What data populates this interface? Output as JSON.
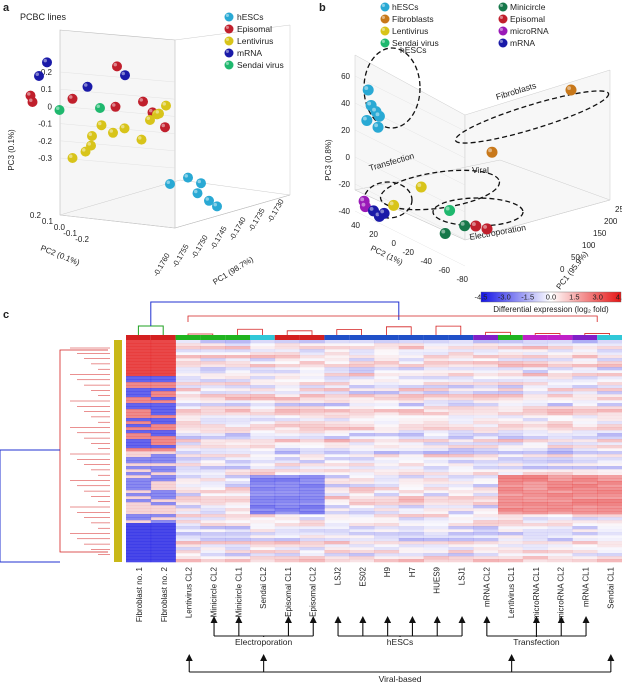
{
  "chart_data": [
    {
      "panel": "a",
      "type": "scatter",
      "title": "PCBC lines",
      "xlabel": "PC1 (98.7%)",
      "ylabel": "PC2 (0.1%)",
      "zlabel": "PC3 (0.1%)",
      "z_ticks": [
        "0.2",
        "0.1",
        "0",
        "-0.1",
        "-0.2",
        "-0.3"
      ],
      "y_ticks": [
        "0.2",
        "0.1",
        "0.0",
        "-0.1",
        "-0.2"
      ],
      "x_ticks": [
        "-0.1760",
        "-0.1755",
        "-0.1750",
        "-0.1745",
        "-0.1740",
        "-0.1735",
        "-0.1730"
      ],
      "legend": [
        {
          "label": "hESCs",
          "color": "#29a9d4"
        },
        {
          "label": "Episomal",
          "color": "#c01f2c"
        },
        {
          "label": "Lentivirus",
          "color": "#d8c41a"
        },
        {
          "label": "mRNA",
          "color": "#1a1aa8"
        },
        {
          "label": "Sendai virus",
          "color": "#1fb86e"
        }
      ],
      "series": [
        {
          "name": "mRNA",
          "points": [
            [
              -0.1757,
              0.14,
              0.16
            ],
            [
              -0.1756,
              0.12,
              0.22
            ],
            [
              -0.175,
              0.05,
              0.13
            ],
            [
              -0.1741,
              0.1,
              0.17
            ]
          ]
        },
        {
          "name": "Episomal",
          "points": [
            [
              -0.1759,
              0.13,
              0.08
            ],
            [
              -0.1758,
              0.15,
              0.05
            ],
            [
              -0.1753,
              0.05,
              0.08
            ],
            [
              -0.1745,
              0.02,
              0.22
            ],
            [
              -0.1745,
              0.03,
              0.05
            ],
            [
              -0.1741,
              -0.02,
              0.08
            ],
            [
              -0.174,
              -0.05,
              0.04
            ],
            [
              -0.1736,
              0.0,
              -0.03
            ]
          ]
        },
        {
          "name": "Sendai virus",
          "points": [
            [
              -0.1755,
              0.07,
              0.03
            ],
            [
              -0.1749,
              0.0,
              0.05
            ]
          ]
        },
        {
          "name": "Lentivirus",
          "points": [
            [
              -0.1756,
              -0.05,
              -0.15
            ],
            [
              -0.1754,
              -0.07,
              -0.12
            ],
            [
              -0.1752,
              -0.04,
              -0.1
            ],
            [
              -0.175,
              0.02,
              -0.07
            ],
            [
              -0.1749,
              -0.01,
              -0.02
            ],
            [
              -0.1747,
              -0.02,
              -0.05
            ],
            [
              -0.1745,
              -0.03,
              -0.03
            ],
            [
              -0.1741,
              -0.01,
              -0.08
            ],
            [
              -0.1739,
              0.0,
              0.0
            ],
            [
              -0.1737,
              0.02,
              0.02
            ],
            [
              -0.1736,
              0.04,
              0.02
            ],
            [
              -0.1734,
              0.06,
              0.05
            ]
          ]
        },
        {
          "name": "hESCs",
          "points": [
            [
              -0.1738,
              -0.1,
              -0.25
            ],
            [
              -0.1735,
              -0.12,
              -0.22
            ],
            [
              -0.1734,
              -0.15,
              -0.28
            ],
            [
              -0.1733,
              -0.14,
              -0.24
            ],
            [
              -0.1732,
              -0.16,
              -0.31
            ],
            [
              -0.1731,
              -0.18,
              -0.33
            ]
          ]
        }
      ]
    },
    {
      "panel": "b",
      "type": "scatter",
      "xlabel": "PC1 (95.9%)",
      "ylabel": "PC2 (1%)",
      "zlabel": "PC3 (0.8%)",
      "z_ticks": [
        "60",
        "40",
        "20",
        "0",
        "-20",
        "-40"
      ],
      "y_ticks": [
        "40",
        "20",
        "0",
        "-20",
        "-40",
        "-60",
        "-80"
      ],
      "x_ticks": [
        "0",
        "50",
        "100",
        "150",
        "200",
        "250"
      ],
      "legend": [
        {
          "label": "hESCs",
          "color": "#29a9d4"
        },
        {
          "label": "Fibroblasts",
          "color": "#c8781a"
        },
        {
          "label": "Lentivirus",
          "color": "#d8c41a"
        },
        {
          "label": "Sendai virus",
          "color": "#1fb86e"
        },
        {
          "label": "Minicircle",
          "color": "#16784a"
        },
        {
          "label": "Episomal",
          "color": "#c01f2c"
        },
        {
          "label": "microRNA",
          "color": "#9a1ab8"
        },
        {
          "label": "mRNA",
          "color": "#1a1aa8"
        }
      ],
      "annotations": [
        "hESCs",
        "Fibroblasts",
        "Transfection",
        "Viral",
        "Electroporation"
      ],
      "series": [
        {
          "name": "hESCs",
          "points": [
            [
              10,
              20,
              55
            ],
            [
              15,
              22,
              42
            ],
            [
              18,
              18,
              38
            ],
            [
              20,
              15,
              35
            ],
            [
              12,
              25,
              30
            ],
            [
              22,
              20,
              25
            ]
          ]
        },
        {
          "name": "Fibroblasts",
          "points": [
            [
              250,
              10,
              30
            ],
            [
              150,
              5,
              -5
            ]
          ]
        },
        {
          "name": "Lentivirus",
          "points": [
            [
              60,
              0,
              -20
            ],
            [
              30,
              5,
              -32
            ]
          ]
        },
        {
          "name": "Sendai virus",
          "points": [
            [
              80,
              -20,
              -35
            ]
          ]
        },
        {
          "name": "Minicircle",
          "points": [
            [
              60,
              -40,
              -45
            ],
            [
              80,
              -45,
              -40
            ]
          ]
        },
        {
          "name": "Episomal",
          "points": [
            [
              90,
              -50,
              -40
            ],
            [
              100,
              -55,
              -42
            ]
          ]
        },
        {
          "name": "microRNA",
          "points": [
            [
              5,
              20,
              -30
            ],
            [
              8,
              22,
              -35
            ]
          ]
        },
        {
          "name": "mRNA",
          "points": [
            [
              15,
              18,
              -38
            ],
            [
              20,
              15,
              -42
            ],
            [
              25,
              14,
              -40
            ]
          ]
        }
      ]
    },
    {
      "panel": "c",
      "type": "heatmap",
      "colorbar_label": "Differential expression (log₂ fold)",
      "colorbar_ticks": [
        "-4.5",
        "-3.0",
        "-1.5",
        "0.0",
        "1.5",
        "3.0",
        "4.5"
      ],
      "colorbar_range": [
        -4.5,
        4.5
      ],
      "columns": [
        "Fibroblast no. 1",
        "Fibroblast no. 2",
        "Lentivirus CL2",
        "Minicircle CL2",
        "Minicircle CL1",
        "Sendai CL2",
        "Episomal CL1",
        "Episomal CL2",
        "LSJ2",
        "ES02",
        "H9",
        "H7",
        "HUES9",
        "LSJ1",
        "mRNA CL2",
        "Lentivirus CL1",
        "microRNA CL1",
        "microRNA CL2",
        "mRNA CL1",
        "Sendai CL1"
      ],
      "column_groups": [
        {
          "label": "Electroporation",
          "members": [
            "Minicircle CL2",
            "Minicircle CL1",
            "Episomal CL1",
            "Episomal CL2"
          ]
        },
        {
          "label": "hESCs",
          "members": [
            "LSJ2",
            "ES02",
            "H9",
            "H7",
            "HUES9",
            "LSJ1"
          ]
        },
        {
          "label": "Transfection",
          "members": [
            "mRNA CL2",
            "microRNA CL1",
            "microRNA CL2",
            "mRNA CL1"
          ]
        },
        {
          "label": "Viral-based",
          "members": [
            "Lentivirus CL2",
            "Sendai CL2",
            "Lentivirus CL1",
            "Sendai CL1"
          ]
        }
      ]
    }
  ],
  "panels": {
    "a": "a",
    "b": "b",
    "c": "c"
  }
}
